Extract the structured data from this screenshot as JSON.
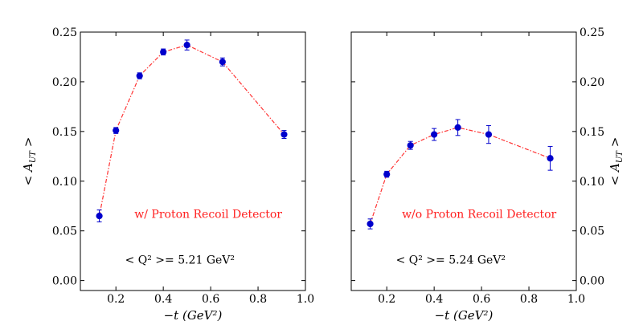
{
  "chart_data": [
    {
      "type": "scatter",
      "panel": "left",
      "xlabel": "−t (GeV²)",
      "ylabel": "< A_UT >",
      "xlim": [
        0.05,
        1.0
      ],
      "ylim": [
        -0.01,
        0.25
      ],
      "xticks": [
        "0.2",
        "0.4",
        "0.6",
        "0.8",
        "1.0"
      ],
      "yticks": [
        "0.00",
        "0.05",
        "0.10",
        "0.15",
        "0.20",
        "0.25"
      ],
      "y_axis_side": "left",
      "grid": false,
      "series": [
        {
          "marker_color": "#0000cc",
          "line_color": "#ff3333",
          "line_style": "dash-dot",
          "x": [
            0.13,
            0.2,
            0.3,
            0.4,
            0.5,
            0.65,
            0.91
          ],
          "y": [
            0.065,
            0.151,
            0.206,
            0.23,
            0.237,
            0.22,
            0.147
          ],
          "yerr": [
            0.006,
            0.003,
            0.003,
            0.003,
            0.005,
            0.004,
            0.004
          ]
        }
      ],
      "annotations": {
        "detector": "w/ Proton Recoil Detector",
        "q2_label": "< Q² >= 5.21 GeV²"
      }
    },
    {
      "type": "scatter",
      "panel": "right",
      "xlabel": "−t (GeV²)",
      "ylabel": "< A_UT >",
      "xlim": [
        0.05,
        1.0
      ],
      "ylim": [
        -0.01,
        0.25
      ],
      "xticks": [
        "0.2",
        "0.4",
        "0.6",
        "0.8",
        "1.0"
      ],
      "yticks": [
        "0.00",
        "0.05",
        "0.10",
        "0.15",
        "0.20",
        "0.25"
      ],
      "y_axis_side": "right",
      "grid": false,
      "series": [
        {
          "marker_color": "#0000cc",
          "line_color": "#ff3333",
          "line_style": "dash-dot",
          "x": [
            0.13,
            0.2,
            0.3,
            0.4,
            0.5,
            0.63,
            0.89
          ],
          "y": [
            0.057,
            0.107,
            0.136,
            0.147,
            0.154,
            0.147,
            0.123
          ],
          "yerr": [
            0.005,
            0.003,
            0.004,
            0.006,
            0.008,
            0.009,
            0.012
          ]
        }
      ],
      "annotations": {
        "detector": "w/o Proton Recoil Detector",
        "q2_label": "< Q² >= 5.24 GeV²"
      }
    }
  ]
}
